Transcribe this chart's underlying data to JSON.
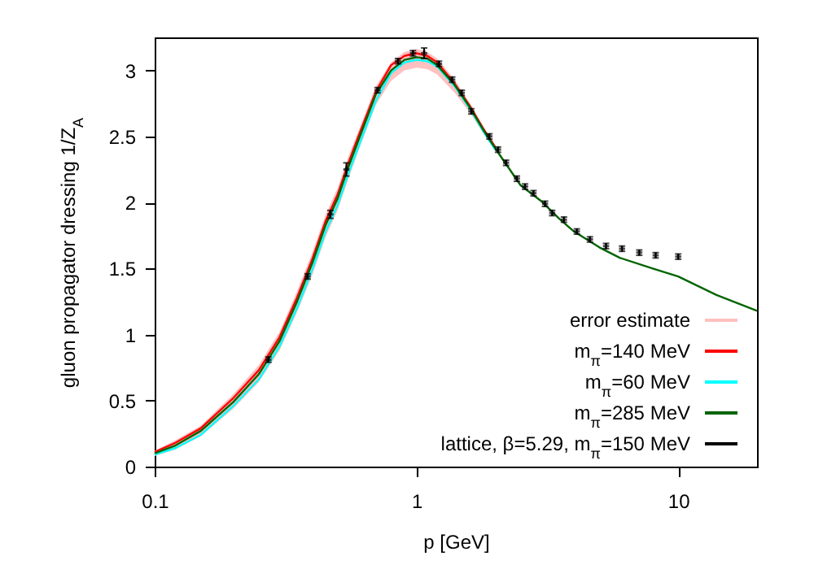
{
  "chart_data": {
    "type": "line",
    "xlabel": "p [GeV]",
    "ylabel": "gluon propagator dressing 1/Z$_{A}$",
    "log": "x",
    "xlim": [
      0.1,
      20
    ],
    "xticks": [
      0.1,
      1,
      10
    ],
    "ylim": [
      0,
      3.25
    ],
    "yticks": [
      0,
      0.5,
      1,
      1.5,
      2,
      2.5,
      3
    ],
    "grid": false,
    "legend": "bottom right",
    "x": [
      0.1,
      0.12,
      0.15,
      0.2,
      0.25,
      0.3,
      0.35,
      0.4,
      0.45,
      0.5,
      0.55,
      0.6,
      0.7,
      0.8,
      0.9,
      1,
      1.1,
      1.2,
      1.4,
      1.6,
      1.8,
      2,
      2.5,
      3,
      3.5,
      4,
      5,
      6,
      8,
      10,
      14,
      20
    ],
    "series": [
      {
        "name": "error estimate",
        "type": "area",
        "color": "#ffc0c0",
        "values": [
          null,
          null,
          null,
          null,
          null,
          null,
          null,
          null,
          null,
          null,
          null,
          null,
          null,
          null,
          null,
          null,
          null,
          null,
          null,
          null,
          null,
          null,
          null,
          null,
          null,
          null,
          null,
          null,
          null,
          null,
          null,
          null
        ]
      },
      {
        "name": "m$_{π}$=140 MeV",
        "color": "#ff0000",
        "values": [
          0.11,
          0.18,
          0.29,
          0.52,
          0.73,
          0.98,
          1.28,
          1.57,
          1.86,
          2.06,
          2.3,
          2.5,
          2.84,
          3.04,
          3.11,
          3.13,
          3.11,
          3.06,
          2.9,
          2.73,
          2.56,
          2.42,
          null,
          null,
          null,
          null,
          null,
          null,
          null,
          null,
          null,
          null
        ],
        "lower": [
          0.08,
          0.13,
          0.23,
          0.44,
          0.64,
          0.88,
          1.17,
          1.45,
          1.74,
          1.94,
          2.18,
          2.39,
          2.74,
          2.92,
          3.0,
          3.02,
          3.01,
          2.97,
          2.83,
          2.68,
          2.52,
          2.39,
          null,
          null,
          null,
          null,
          null,
          null,
          null,
          null,
          null,
          null
        ],
        "upper": [
          0.12,
          0.2,
          0.31,
          0.55,
          0.77,
          1.02,
          1.33,
          1.62,
          1.91,
          2.11,
          2.35,
          2.54,
          2.88,
          3.06,
          3.14,
          3.16,
          3.14,
          3.09,
          2.93,
          2.75,
          2.57,
          2.43,
          null,
          null,
          null,
          null,
          null,
          null,
          null,
          null,
          null,
          null
        ]
      },
      {
        "name": "m$_{π}$=60 MeV",
        "color": "#00ffff",
        "values": [
          0.09,
          0.14,
          0.24,
          0.46,
          0.66,
          0.91,
          1.2,
          1.49,
          1.78,
          1.98,
          2.22,
          2.42,
          2.77,
          2.98,
          3.06,
          3.08,
          3.07,
          3.03,
          2.88,
          2.71,
          2.54,
          2.4,
          null,
          null,
          null,
          null,
          null,
          null,
          null,
          null,
          null,
          null
        ]
      },
      {
        "name": "m$_{π}$=285 MeV",
        "color": "#006400",
        "values": [
          0.1,
          0.16,
          0.27,
          0.49,
          0.7,
          0.95,
          1.25,
          1.54,
          1.83,
          2.03,
          2.27,
          2.47,
          2.82,
          3.0,
          3.08,
          3.1,
          3.09,
          3.04,
          2.89,
          2.72,
          2.55,
          2.41,
          2.13,
          2.01,
          1.88,
          1.78,
          1.66,
          1.58,
          1.5,
          1.44,
          1.3,
          1.18
        ]
      },
      {
        "name": "lattice, β=5.29, m$_{π}$=150 MeV",
        "type": "scatter",
        "color": "#000000",
        "marker": "cross",
        "x": [
          0.272,
          0.384,
          0.469,
          0.54,
          0.71,
          0.85,
          0.97,
          1.07,
          1.22,
          1.37,
          1.49,
          1.62,
          1.9,
          2.05,
          2.2,
          2.42,
          2.6,
          2.8,
          3.1,
          3.3,
          3.66,
          4.1,
          4.6,
          5.3,
          6.1,
          7.1,
          8.2,
          10
        ],
        "values": [
          0.81,
          1.44,
          1.91,
          2.25,
          2.85,
          3.07,
          3.13,
          3.13,
          3.05,
          2.93,
          2.83,
          2.69,
          2.5,
          2.4,
          2.3,
          2.18,
          2.12,
          2.07,
          1.99,
          1.92,
          1.87,
          1.78,
          1.72,
          1.67,
          1.65,
          1.62,
          1.6,
          1.59
        ],
        "errors": [
          0.02,
          0.02,
          0.03,
          0.05,
          0.02,
          0.02,
          0.02,
          0.04,
          0.02,
          0.02,
          0.02,
          0.02,
          0.02,
          0.02,
          0.02,
          0.02,
          0.02,
          0.02,
          0.02,
          0.02,
          0.02,
          0.02,
          0.02,
          0.02,
          0.02,
          0.02,
          0.02,
          0.02
        ]
      }
    ]
  }
}
